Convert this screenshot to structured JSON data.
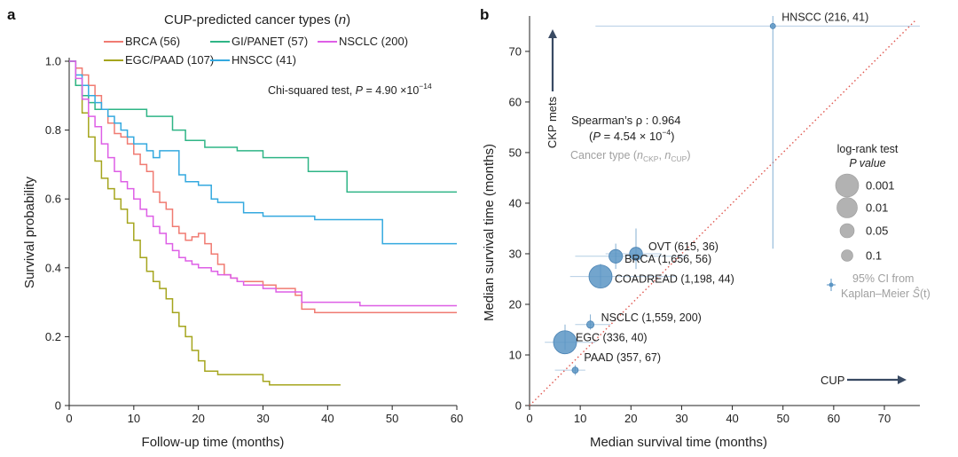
{
  "chart_data": [
    {
      "panel_label": "a",
      "type": "line",
      "xlabel": "Follow-up time (months)",
      "ylabel": "Survival probability",
      "xlim": [
        0,
        60
      ],
      "ylim": [
        0,
        1.0
      ],
      "x_ticks": [
        "0",
        "10",
        "20",
        "30",
        "40",
        "50",
        "60"
      ],
      "y_ticks": [
        "0",
        "0.2",
        "0.4",
        "0.6",
        "0.8",
        "1.0"
      ],
      "grid": false,
      "legend": {
        "title": "CUP-predicted cancer types (",
        "title_italic": "n",
        "title_close": ")",
        "position": "top"
      },
      "annotation": {
        "text": "Chi-squared test, ",
        "p_label": "P",
        "p_value": " = 4.90 ×10",
        "p_exp": "−14"
      },
      "series": [
        {
          "name": "BRCA (56)",
          "color": "#f07b72",
          "points": [
            [
              0,
              1
            ],
            [
              1,
              0.98
            ],
            [
              2,
              0.96
            ],
            [
              3,
              0.93
            ],
            [
              4,
              0.9
            ],
            [
              5,
              0.86
            ],
            [
              6,
              0.82
            ],
            [
              7,
              0.79
            ],
            [
              8,
              0.78
            ],
            [
              9,
              0.76
            ],
            [
              10,
              0.73
            ],
            [
              11,
              0.7
            ],
            [
              12,
              0.68
            ],
            [
              13,
              0.62
            ],
            [
              14,
              0.59
            ],
            [
              15,
              0.57
            ],
            [
              16,
              0.52
            ],
            [
              17,
              0.5
            ],
            [
              18,
              0.48
            ],
            [
              19,
              0.49
            ],
            [
              20,
              0.5
            ],
            [
              21,
              0.47
            ],
            [
              22,
              0.44
            ],
            [
              23,
              0.41
            ],
            [
              24,
              0.38
            ],
            [
              25,
              0.37
            ],
            [
              26,
              0.36
            ],
            [
              28,
              0.36
            ],
            [
              30,
              0.35
            ],
            [
              32,
              0.34
            ],
            [
              35,
              0.32
            ],
            [
              36,
              0.28
            ],
            [
              38,
              0.27
            ],
            [
              45,
              0.27
            ],
            [
              60,
              0.27
            ]
          ]
        },
        {
          "name": "EGC/PAAD (107)",
          "color": "#a5a51d",
          "points": [
            [
              0,
              1
            ],
            [
              1,
              0.93
            ],
            [
              2,
              0.85
            ],
            [
              3,
              0.78
            ],
            [
              4,
              0.71
            ],
            [
              5,
              0.66
            ],
            [
              6,
              0.63
            ],
            [
              7,
              0.6
            ],
            [
              8,
              0.57
            ],
            [
              9,
              0.53
            ],
            [
              10,
              0.48
            ],
            [
              11,
              0.43
            ],
            [
              12,
              0.39
            ],
            [
              13,
              0.36
            ],
            [
              14,
              0.34
            ],
            [
              15,
              0.31
            ],
            [
              16,
              0.27
            ],
            [
              17,
              0.23
            ],
            [
              18,
              0.2
            ],
            [
              19,
              0.16
            ],
            [
              20,
              0.13
            ],
            [
              21,
              0.1
            ],
            [
              22,
              0.1
            ],
            [
              23,
              0.09
            ],
            [
              24,
              0.09
            ],
            [
              26,
              0.09
            ],
            [
              28,
              0.09
            ],
            [
              30,
              0.07
            ],
            [
              31,
              0.06
            ],
            [
              35,
              0.06
            ],
            [
              42,
              0.06
            ]
          ]
        },
        {
          "name": "GI/PANET (57)",
          "color": "#2fb586",
          "points": [
            [
              0,
              1
            ],
            [
              1,
              0.93
            ],
            [
              2,
              0.9
            ],
            [
              3,
              0.88
            ],
            [
              4,
              0.86
            ],
            [
              8,
              0.86
            ],
            [
              10,
              0.86
            ],
            [
              12,
              0.84
            ],
            [
              15,
              0.84
            ],
            [
              16,
              0.8
            ],
            [
              18,
              0.77
            ],
            [
              21,
              0.75
            ],
            [
              23,
              0.75
            ],
            [
              24,
              0.75
            ],
            [
              26,
              0.74
            ],
            [
              29,
              0.74
            ],
            [
              30,
              0.72
            ],
            [
              36,
              0.72
            ],
            [
              37,
              0.68
            ],
            [
              42,
              0.68
            ],
            [
              43,
              0.62
            ],
            [
              50,
              0.62
            ],
            [
              60,
              0.62
            ]
          ]
        },
        {
          "name": "HNSCC (41)",
          "color": "#34a9df",
          "points": [
            [
              0,
              1
            ],
            [
              1,
              0.96
            ],
            [
              2,
              0.93
            ],
            [
              3,
              0.9
            ],
            [
              4,
              0.88
            ],
            [
              5,
              0.86
            ],
            [
              6,
              0.84
            ],
            [
              7,
              0.82
            ],
            [
              8,
              0.8
            ],
            [
              9,
              0.78
            ],
            [
              10,
              0.76
            ],
            [
              12,
              0.74
            ],
            [
              13,
              0.72
            ],
            [
              14,
              0.74
            ],
            [
              16,
              0.74
            ],
            [
              17,
              0.67
            ],
            [
              18,
              0.65
            ],
            [
              20,
              0.64
            ],
            [
              22,
              0.6
            ],
            [
              23,
              0.59
            ],
            [
              25,
              0.59
            ],
            [
              27,
              0.56
            ],
            [
              30,
              0.55
            ],
            [
              38,
              0.54
            ],
            [
              40,
              0.54
            ],
            [
              48,
              0.54
            ],
            [
              48.5,
              0.47
            ],
            [
              60,
              0.47
            ]
          ]
        },
        {
          "name": "NSCLC (200)",
          "color": "#de5fe6",
          "points": [
            [
              0,
              1
            ],
            [
              1,
              0.95
            ],
            [
              2,
              0.89
            ],
            [
              3,
              0.84
            ],
            [
              4,
              0.81
            ],
            [
              5,
              0.76
            ],
            [
              6,
              0.72
            ],
            [
              7,
              0.68
            ],
            [
              8,
              0.65
            ],
            [
              9,
              0.63
            ],
            [
              10,
              0.6
            ],
            [
              11,
              0.57
            ],
            [
              12,
              0.55
            ],
            [
              13,
              0.52
            ],
            [
              14,
              0.5
            ],
            [
              15,
              0.47
            ],
            [
              16,
              0.45
            ],
            [
              17,
              0.43
            ],
            [
              18,
              0.42
            ],
            [
              19,
              0.41
            ],
            [
              20,
              0.4
            ],
            [
              21,
              0.4
            ],
            [
              22,
              0.39
            ],
            [
              23,
              0.38
            ],
            [
              24,
              0.38
            ],
            [
              25,
              0.37
            ],
            [
              26,
              0.36
            ],
            [
              27,
              0.35
            ],
            [
              28,
              0.35
            ],
            [
              30,
              0.34
            ],
            [
              32,
              0.33
            ],
            [
              35,
              0.33
            ],
            [
              36,
              0.3
            ],
            [
              40,
              0.3
            ],
            [
              45,
              0.29
            ],
            [
              60,
              0.29
            ]
          ]
        }
      ]
    },
    {
      "panel_label": "b",
      "type": "scatter",
      "xlabel": "Median survival time (months)",
      "ylabel": "Median survival time (months)",
      "xlim": [
        0,
        77
      ],
      "ylim": [
        0,
        77
      ],
      "x_ticks": [
        "0",
        "10",
        "20",
        "30",
        "40",
        "50",
        "60",
        "70"
      ],
      "y_ticks": [
        "0",
        "10",
        "20",
        "30",
        "40",
        "50",
        "60",
        "70"
      ],
      "grid": false,
      "diagonal": "dotted y = x",
      "marker_color": "#5b95c4",
      "y_arrow_label": "CKP mets",
      "x_arrow_label": "CUP",
      "stat": {
        "line1": "Spearman’s ρ : 0.964",
        "line2_open": "(",
        "line2_p": "P",
        "line2_val": " = 4.54 × 10",
        "line2_exp": "−4",
        "line2_close": ")",
        "note_prefix": "Cancer type (",
        "note_n1": "n",
        "note_sub1": "CKP",
        "note_sep": ", ",
        "note_n2": "n",
        "note_sub2": "CUP",
        "note_close": ")"
      },
      "size_legend": {
        "title_line1": "log-rank test",
        "title_line2": "P value",
        "items": [
          {
            "label": "0.001",
            "p": 0.001
          },
          {
            "label": "0.01",
            "p": 0.01
          },
          {
            "label": "0.05",
            "p": 0.05
          },
          {
            "label": "0.1",
            "p": 0.1
          }
        ]
      },
      "ci_legend": {
        "line1": "95% CI from",
        "line2_prefix": "Kaplan–Meier ",
        "line2_s": "Ŝ",
        "line2_t": "(t)"
      },
      "points": [
        {
          "label": "HNSCC (216, 41)",
          "x": 48,
          "y": 75,
          "x_ci": [
            13,
            77
          ],
          "y_ci": [
            31,
            77
          ],
          "p": 0.5
        },
        {
          "label": "OVT (615, 36)",
          "x": 21,
          "y": 30,
          "x_ci": [
            15,
            26
          ],
          "y_ci": [
            27,
            35
          ],
          "p": 0.07
        },
        {
          "label": "BRCA (1,656, 56)",
          "x": 17,
          "y": 29.5,
          "x_ci": [
            9,
            31
          ],
          "y_ci": [
            27,
            32
          ],
          "p": 0.06
        },
        {
          "label": "COADREAD (1,198, 44)",
          "x": 14,
          "y": 25.5,
          "x_ci": [
            8,
            29
          ],
          "y_ci": [
            23.5,
            28
          ],
          "p": 0.005
        },
        {
          "label": "NSCLC (1,559, 200)",
          "x": 12,
          "y": 16,
          "x_ci": [
            9,
            16
          ],
          "y_ci": [
            15,
            18
          ],
          "p": 0.3
        },
        {
          "label": "EGC (336, 40)",
          "x": 7,
          "y": 12.5,
          "x_ci": [
            3,
            13
          ],
          "y_ci": [
            11,
            16
          ],
          "p": 0.003
        },
        {
          "label": "PAAD (357, 67)",
          "x": 9,
          "y": 7,
          "x_ci": [
            5,
            11
          ],
          "y_ci": [
            6,
            8
          ],
          "p": 0.4
        }
      ]
    }
  ]
}
